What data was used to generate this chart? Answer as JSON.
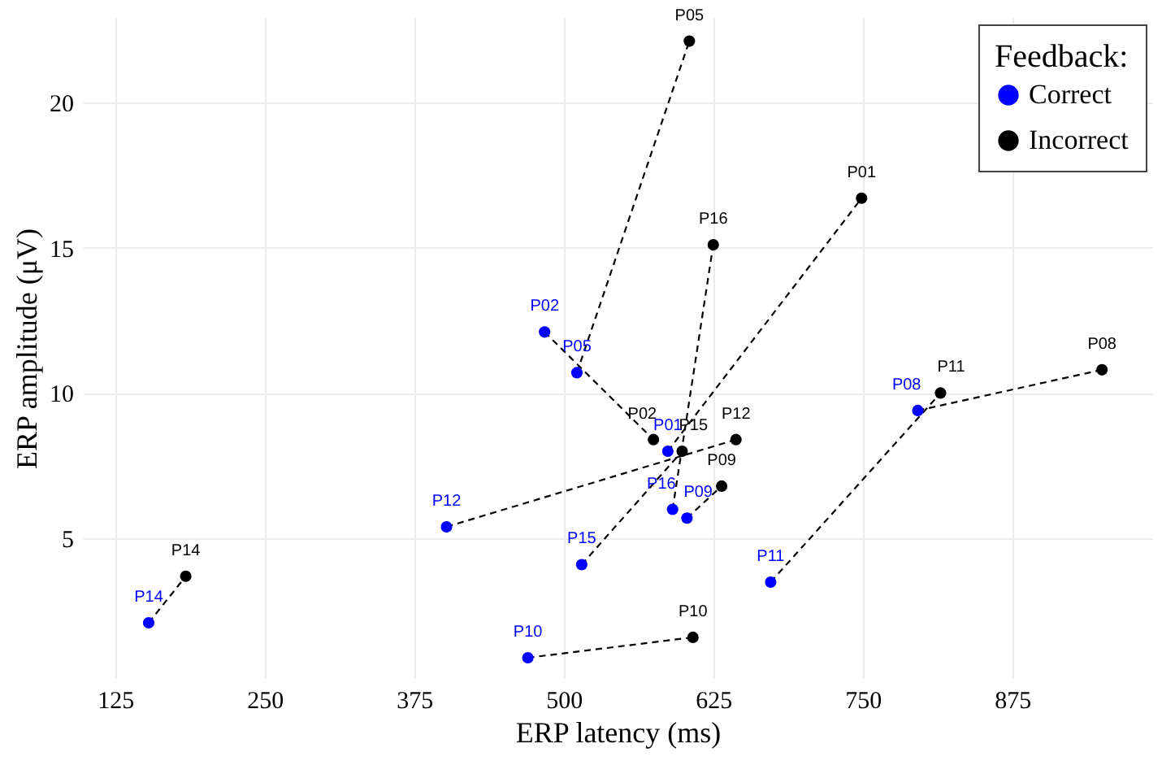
{
  "chart_data": {
    "type": "scatter",
    "xlabel": "ERP latency (ms)",
    "ylabel": "ERP amplitude (μV)",
    "legend_title": "Feedback:",
    "legend": "top right",
    "grid": true,
    "marker": "circle",
    "xlim": [
      98,
      992
    ],
    "xticks": [
      125,
      250,
      375,
      500,
      625,
      750,
      875
    ],
    "ylim": [
      0.2,
      22.9
    ],
    "yticks": [
      5,
      10,
      15,
      20
    ],
    "series": [
      {
        "type": "line",
        "marker": "none",
        "line_style": "dashed",
        "color": "#000000",
        "x": [
          153,
          184
        ],
        "values": [
          2.1,
          3.7
        ]
      },
      {
        "type": "line",
        "marker": "none",
        "line_style": "dashed",
        "color": "#000000",
        "x": [
          402,
          644
        ],
        "values": [
          5.4,
          8.4
        ]
      },
      {
        "type": "line",
        "marker": "none",
        "line_style": "dashed",
        "color": "#000000",
        "x": [
          515,
          599
        ],
        "values": [
          4.1,
          8.0
        ]
      },
      {
        "type": "line",
        "marker": "none",
        "line_style": "dashed",
        "color": "#000000",
        "x": [
          470,
          608
        ],
        "values": [
          0.9,
          1.6
        ]
      },
      {
        "type": "line",
        "marker": "none",
        "line_style": "dashed",
        "color": "#000000",
        "x": [
          484,
          575
        ],
        "values": [
          12.1,
          8.4
        ]
      },
      {
        "type": "line",
        "marker": "none",
        "line_style": "dashed",
        "color": "#000000",
        "x": [
          511,
          605
        ],
        "values": [
          10.7,
          22.1
        ]
      },
      {
        "type": "line",
        "marker": "none",
        "line_style": "dashed",
        "color": "#000000",
        "x": [
          587,
          749
        ],
        "values": [
          8.0,
          16.7
        ]
      },
      {
        "type": "line",
        "marker": "none",
        "line_style": "dashed",
        "color": "#000000",
        "x": [
          591,
          625
        ],
        "values": [
          6.0,
          15.1
        ]
      },
      {
        "type": "line",
        "marker": "none",
        "line_style": "dashed",
        "color": "#000000",
        "x": [
          603,
          632
        ],
        "values": [
          5.7,
          6.8
        ]
      },
      {
        "type": "line",
        "marker": "none",
        "line_style": "dashed",
        "color": "#000000",
        "x": [
          673,
          815
        ],
        "values": [
          3.5,
          10.0
        ]
      },
      {
        "type": "line",
        "marker": "none",
        "line_style": "dashed",
        "color": "#000000",
        "x": [
          796,
          950
        ],
        "values": [
          9.4,
          10.8
        ]
      },
      {
        "name": "Correct",
        "color": "#0000ff",
        "x": [
          153,
          402,
          515,
          470,
          484,
          511,
          587,
          591,
          603,
          673,
          796
        ],
        "values": [
          2.1,
          5.4,
          4.1,
          0.9,
          12.1,
          10.7,
          8.0,
          6.0,
          5.7,
          3.5,
          9.4
        ]
      },
      {
        "name": "Incorrect",
        "color": "#000000",
        "x": [
          184,
          644,
          599,
          608,
          575,
          605,
          749,
          625,
          632,
          815,
          950
        ],
        "values": [
          3.7,
          8.4,
          8.0,
          1.6,
          8.4,
          22.1,
          16.7,
          15.1,
          6.8,
          10.0,
          10.8
        ]
      }
    ],
    "annotations": [
      {
        "text": "P14",
        "x": 153,
        "y": 2.1
      },
      {
        "text": "P12",
        "x": 402,
        "y": 5.4
      },
      {
        "text": "P15",
        "x": 515,
        "y": 4.1
      },
      {
        "text": "P10",
        "x": 470,
        "y": 0.9
      },
      {
        "text": "P02",
        "x": 484,
        "y": 12.1
      },
      {
        "text": "P05",
        "x": 511,
        "y": 10.7
      },
      {
        "text": "P01",
        "x": 587,
        "y": 8.0
      },
      {
        "text": "P16",
        "x": 591,
        "y": 6.0
      },
      {
        "text": "P09",
        "x": 603,
        "y": 5.7
      },
      {
        "text": "P11",
        "x": 673,
        "y": 3.5
      },
      {
        "text": "P08",
        "x": 796,
        "y": 9.4
      },
      {
        "text": "P14",
        "x": 184,
        "y": 3.7
      },
      {
        "text": "P12",
        "x": 644,
        "y": 8.4
      },
      {
        "text": "P15",
        "x": 599,
        "y": 8.0
      },
      {
        "text": "P10",
        "x": 608,
        "y": 1.6
      },
      {
        "text": "P02",
        "x": 575,
        "y": 8.4
      },
      {
        "text": "P05",
        "x": 605,
        "y": 22.1
      },
      {
        "text": "P01",
        "x": 749,
        "y": 16.7
      },
      {
        "text": "P16",
        "x": 625,
        "y": 15.1
      },
      {
        "text": "P09",
        "x": 632,
        "y": 6.8
      },
      {
        "text": "P11",
        "x": 815,
        "y": 10.0
      },
      {
        "text": "P08",
        "x": 950,
        "y": 10.8
      }
    ]
  }
}
